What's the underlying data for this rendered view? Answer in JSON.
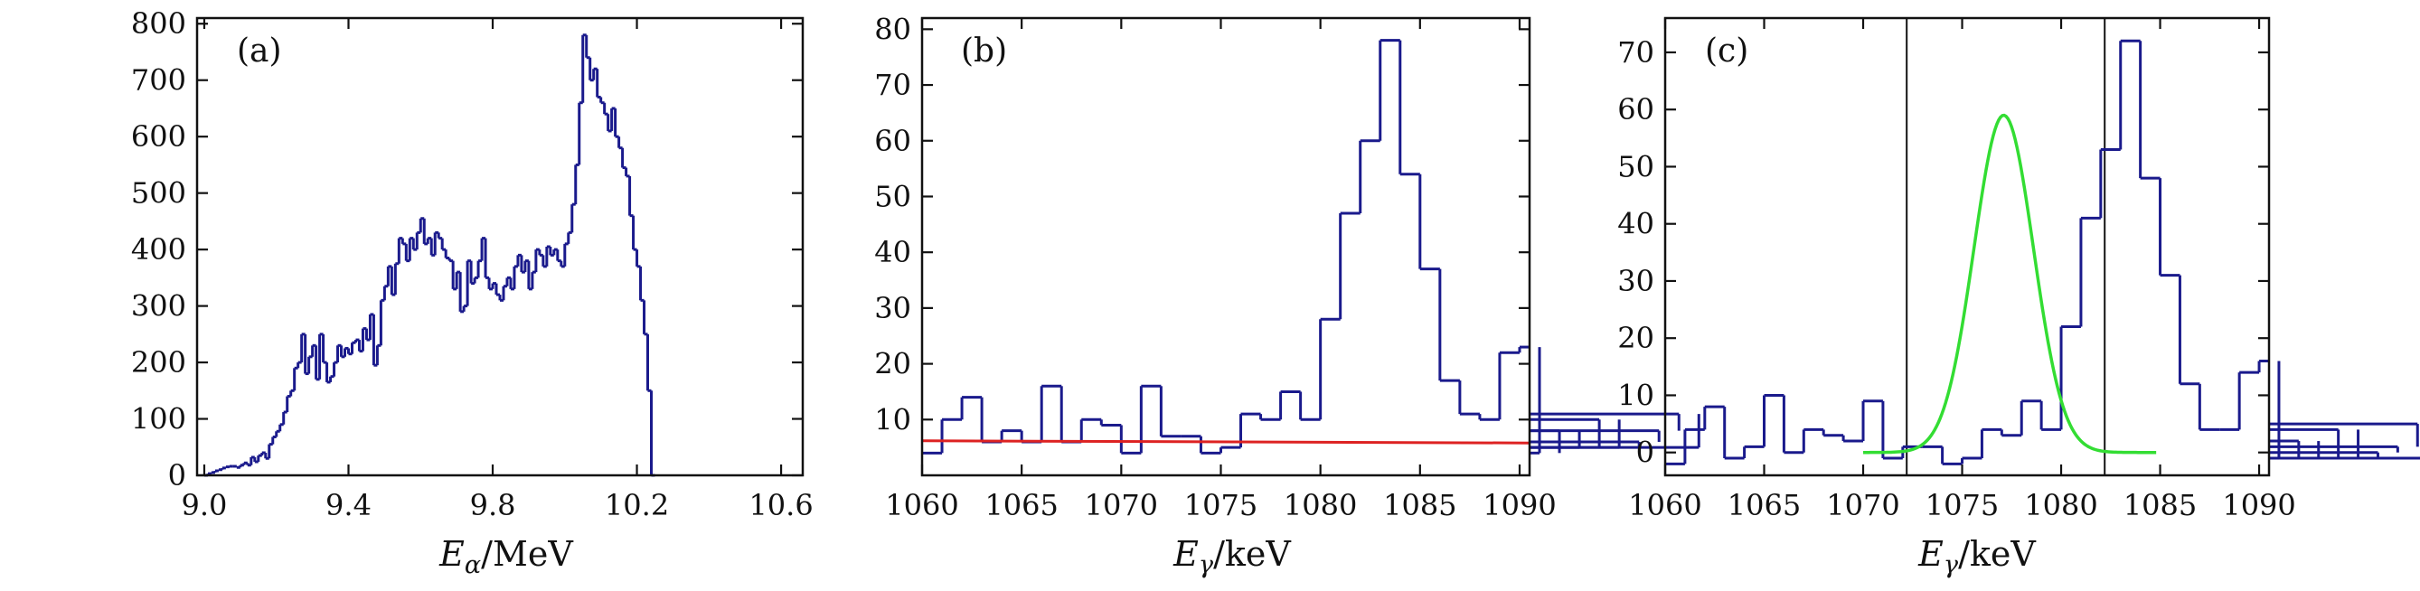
{
  "chart_data": [
    {
      "type": "histogram",
      "panel_label": "(a)",
      "xlabel_main": "E",
      "xlabel_sub": "α",
      "xlabel_unit": "/MeV",
      "ylabel": "",
      "xlim": [
        8.98,
        10.66
      ],
      "ylim": [
        0,
        810
      ],
      "xticks": [
        9.0,
        9.4,
        9.8,
        10.2,
        10.6
      ],
      "xtick_labels": [
        "9.0",
        "9.4",
        "9.8",
        "10.2",
        "10.6"
      ],
      "yticks": [
        0,
        100,
        200,
        300,
        400,
        500,
        600,
        700,
        800
      ],
      "ytick_labels": [
        "0",
        "100",
        "200",
        "300",
        "400",
        "500",
        "600",
        "700",
        "800"
      ],
      "series": [
        {
          "name": "alpha energy spectrum",
          "color": "#1a1a8c",
          "x_start": 9.0,
          "bin_width": 0.01,
          "values": [
            0,
            3,
            5,
            8,
            10,
            13,
            15,
            16,
            16,
            14,
            18,
            22,
            18,
            32,
            24,
            35,
            40,
            30,
            55,
            68,
            78,
            90,
            112,
            140,
            150,
            190,
            200,
            250,
            180,
            210,
            230,
            170,
            250,
            200,
            165,
            175,
            200,
            230,
            210,
            225,
            215,
            235,
            240,
            220,
            260,
            240,
            285,
            195,
            230,
            310,
            335,
            370,
            320,
            375,
            420,
            410,
            380,
            420,
            400,
            430,
            455,
            410,
            420,
            390,
            430,
            420,
            400,
            385,
            380,
            330,
            360,
            290,
            300,
            380,
            340,
            350,
            380,
            420,
            350,
            330,
            340,
            320,
            310,
            335,
            350,
            330,
            370,
            390,
            360,
            380,
            330,
            360,
            400,
            390,
            370,
            405,
            390,
            400,
            380,
            370,
            410,
            430,
            480,
            550,
            660,
            780,
            740,
            700,
            720,
            670,
            660,
            640,
            610,
            650,
            600,
            580,
            545,
            530,
            460,
            400,
            370,
            310,
            250,
            150,
            0
          ]
        }
      ]
    },
    {
      "type": "histogram",
      "panel_label": "(b)",
      "xlabel_main": "E",
      "xlabel_sub": "γ",
      "xlabel_unit": "/keV",
      "ylabel": "",
      "xlim": [
        1060,
        1090.5
      ],
      "ylim": [
        0,
        82
      ],
      "xticks": [
        1060,
        1065,
        1070,
        1075,
        1080,
        1085,
        1090
      ],
      "xtick_labels": [
        "1060",
        "1065",
        "1070",
        "1075",
        "1080",
        "1085",
        "1090"
      ],
      "yticks": [
        10,
        20,
        30,
        40,
        50,
        60,
        70,
        80
      ],
      "ytick_labels": [
        "10",
        "20",
        "30",
        "40",
        "50",
        "60",
        "70",
        "80"
      ],
      "series": [
        {
          "name": "gamma spectrum",
          "color": "#1a1a8c",
          "x_start": 1060,
          "bin_width": 1,
          "values": [
            4,
            10,
            14,
            6,
            8,
            6,
            16,
            6,
            10,
            9,
            4,
            16,
            7,
            7,
            4,
            5,
            11,
            10,
            15,
            10,
            28,
            47,
            60,
            78,
            54,
            37,
            17,
            11,
            10,
            22,
            23,
            4,
            8,
            5,
            10,
            5,
            6,
            8,
            11,
            5
          ]
        },
        {
          "name": "background",
          "color": "#dd2222",
          "type": "line",
          "x": [
            1060,
            1090.5
          ],
          "y": [
            6.2,
            5.8
          ]
        }
      ]
    },
    {
      "type": "histogram",
      "panel_label": "(c)",
      "xlabel_main": "E",
      "xlabel_sub": "γ",
      "xlabel_unit": "/keV",
      "ylabel": "",
      "xlim": [
        1060,
        1090.5
      ],
      "ylim": [
        -4,
        76
      ],
      "xticks": [
        1060,
        1065,
        1070,
        1075,
        1080,
        1085,
        1090
      ],
      "xtick_labels": [
        "1060",
        "1065",
        "1070",
        "1075",
        "1080",
        "1085",
        "1090"
      ],
      "yticks": [
        0,
        10,
        20,
        30,
        40,
        50,
        60,
        70
      ],
      "ytick_labels": [
        "0",
        "10",
        "20",
        "30",
        "40",
        "50",
        "60",
        "70"
      ],
      "vlines": [
        1072.2,
        1082.2
      ],
      "series": [
        {
          "name": "background-subtracted spectrum",
          "color": "#1a1a8c",
          "x_start": 1060,
          "bin_width": 1,
          "values": [
            -2,
            4,
            8,
            -1,
            1,
            10,
            0,
            4,
            3,
            2,
            9,
            -1,
            1,
            1,
            -2,
            -1,
            4,
            3,
            9,
            4,
            22,
            41,
            53,
            72,
            48,
            31,
            12,
            4,
            4,
            14,
            16,
            -1,
            2,
            -1,
            4,
            -1,
            0,
            1,
            5,
            -1
          ]
        },
        {
          "name": "gaussian fit",
          "color": "#33dd33",
          "type": "gaussian",
          "amplitude": 59,
          "mean": 1077.1,
          "sigma": 1.5,
          "x_range": [
            1070,
            1084.8
          ]
        }
      ]
    }
  ]
}
